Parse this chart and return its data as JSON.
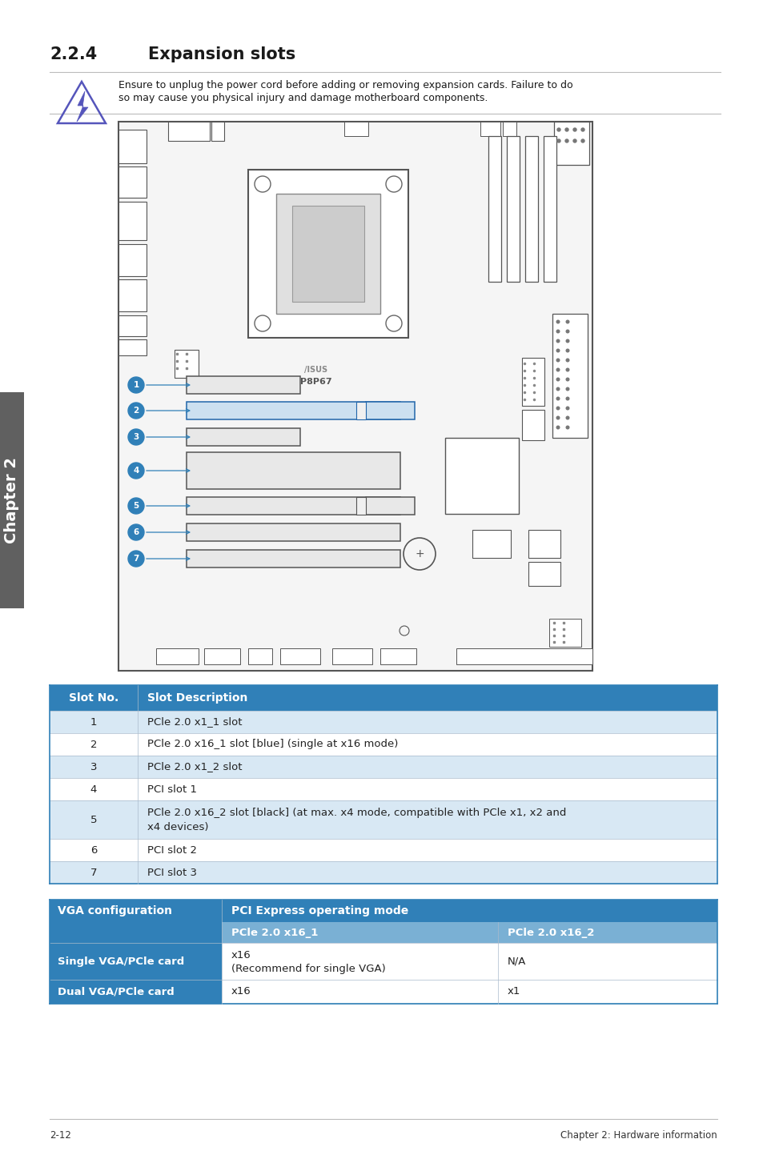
{
  "title_number": "2.2.4",
  "title_text": "Expansion slots",
  "warning_text_line1": "Ensure to unplug the power cord before adding or removing expansion cards. Failure to do",
  "warning_text_line2": "so may cause you physical injury and damage motherboard components.",
  "header_bg": "#3080b8",
  "header_text_color": "#ffffff",
  "row_alt_bg": "#d8e8f4",
  "row_bg": "#ffffff",
  "border_color": "#3080b8",
  "sub_header_bg": "#7ab0d4",
  "table1_headers": [
    "Slot No.",
    "Slot Description"
  ],
  "table1_rows": [
    [
      "1",
      "PCle 2.0 x1_1 slot"
    ],
    [
      "2",
      "PCle 2.0 x16_1 slot [blue] (single at x16 mode)"
    ],
    [
      "3",
      "PCle 2.0 x1_2 slot"
    ],
    [
      "4",
      "PCI slot 1"
    ],
    [
      "5",
      "PCle 2.0 x16_2 slot [black] (at max. x4 mode, compatible with PCle x1, x2 and\nx4 devices)"
    ],
    [
      "6",
      "PCI slot 2"
    ],
    [
      "7",
      "PCI slot 3"
    ]
  ],
  "table2_header_left": "VGA configuration",
  "table2_header_right": "PCI Express operating mode",
  "table2_sub_col1": "PCle 2.0 x16_1",
  "table2_sub_col2": "PCle 2.0 x16_2",
  "table2_rows": [
    [
      "Single VGA/PCle card",
      "x16\n(Recommend for single VGA)",
      "N/A"
    ],
    [
      "Dual VGA/PCle card",
      "x16",
      "x1"
    ]
  ],
  "footer_left": "2-12",
  "footer_right": "Chapter 2: Hardware information",
  "chapter_tab": "Chapter 2",
  "chapter_tab_bg": "#606060",
  "chapter_tab_text": "#ffffff",
  "page_bg": "#ffffff",
  "label_blue": "#3080b8"
}
